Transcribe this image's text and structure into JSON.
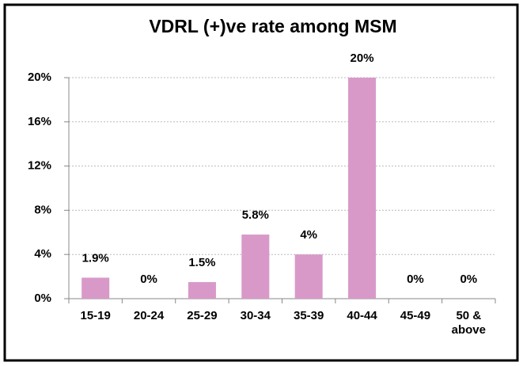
{
  "chart_data": {
    "type": "bar",
    "title": "VDRL (+)ve rate among MSM",
    "categories": [
      "15-19",
      "20-24",
      "25-29",
      "30-34",
      "35-39",
      "40-44",
      "45-49",
      "50 & above"
    ],
    "values": [
      1.9,
      0,
      1.5,
      5.8,
      4,
      20,
      0,
      0
    ],
    "value_labels": [
      "1.9%",
      "0%",
      "1.5%",
      "5.8%",
      "4%",
      "20%",
      "0%",
      "0%"
    ],
    "color": "#d899c9",
    "ylim": [
      0,
      20
    ],
    "yticks": [
      {
        "value": 0,
        "label": "0%"
      },
      {
        "value": 4,
        "label": "4%"
      },
      {
        "value": 8,
        "label": "8%"
      },
      {
        "value": 12,
        "label": "12%"
      },
      {
        "value": 16,
        "label": "16%"
      },
      {
        "value": 20,
        "label": "20%"
      }
    ],
    "grid": true
  }
}
